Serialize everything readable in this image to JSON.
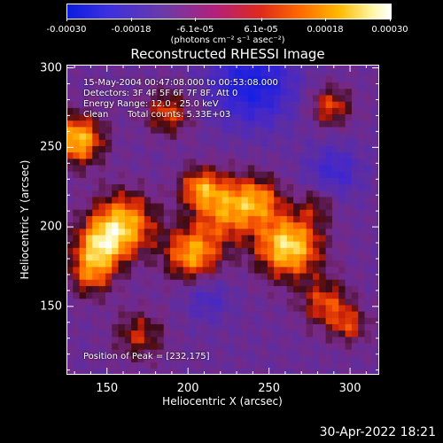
{
  "colorbar": {
    "ticks": [
      "-0.00030",
      "-0.00018",
      "-6.1e-05",
      "6.1e-05",
      "0.00018",
      "0.00030"
    ],
    "tick_values": [
      -0.0003,
      -0.00018,
      -6.1e-05,
      6.1e-05,
      0.00018,
      0.0003
    ],
    "range": [
      -0.0003,
      0.0003
    ],
    "units": "(photons cm⁻² s⁻¹ asec⁻²)"
  },
  "chart_data": {
    "type": "heatmap",
    "title": "Reconstructed RHESSI Image",
    "xlabel": "Heliocentric X (arcsec)",
    "ylabel": "Heliocentric Y (arcsec)",
    "xlim": [
      125,
      318
    ],
    "ylim": [
      107,
      302
    ],
    "x_ticks": [
      150,
      200,
      250,
      300
    ],
    "y_ticks": [
      150,
      200,
      250,
      300
    ],
    "peak": [
      232,
      175
    ],
    "annotations": {
      "time": "15-May-2004 00:47:08.000 to 00:53:08.000",
      "detectors": "Detectors: 3F 4F 5F 6F 7F 8F, Att 0",
      "energy": "Energy Range: 12.0 - 25.0 keV",
      "method": "Clean",
      "counts": "Total counts: 5.33E+03",
      "peak": "Position of Peak = [232,175]"
    }
  },
  "footer": {
    "timestamp": "30-Apr-2022 18:21"
  }
}
